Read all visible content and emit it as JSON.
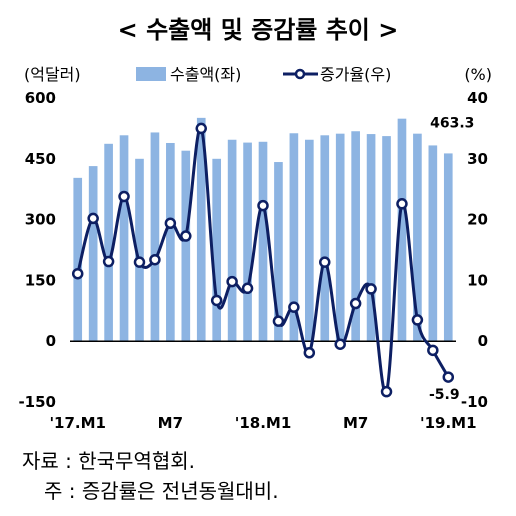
{
  "chart_data": {
    "type": "bar+line",
    "title": "< 수출액 및 증감률 추이 >",
    "left_unit": "(억달러)",
    "right_unit": "(%)",
    "categories": [
      "'17.M1",
      "",
      "",
      "",
      "",
      "",
      "M7",
      "",
      "",
      "",
      "",
      "",
      "'18.M1",
      "",
      "",
      "",
      "",
      "",
      "M7",
      "",
      "",
      "",
      "",
      "",
      "'19.M1"
    ],
    "x_tick_labels": [
      "'17.M1",
      "M7",
      "'18.M1",
      "M7",
      "'19.M1"
    ],
    "bar_series": {
      "name": "수출액(좌)",
      "color": "#8db4e2",
      "values": [
        403,
        432,
        487,
        508,
        450,
        515,
        489,
        470,
        551,
        450,
        497,
        490,
        492,
        442,
        513,
        497,
        508,
        512,
        518,
        511,
        506,
        549,
        512,
        483,
        463.3
      ]
    },
    "line_series": {
      "name": "증가율(우)",
      "color": "#0d1f63",
      "values": [
        11.1,
        20.2,
        13.1,
        23.8,
        13.0,
        13.4,
        19.4,
        17.3,
        35.0,
        6.7,
        9.8,
        8.7,
        22.3,
        3.3,
        5.6,
        -1.9,
        13.0,
        -0.5,
        6.2,
        8.6,
        -8.3,
        22.6,
        3.5,
        -1.5,
        -5.9
      ]
    },
    "ylim_left": [
      -150,
      600
    ],
    "yticks_left": [
      "600",
      "450",
      "300",
      "150",
      "0",
      "-150"
    ],
    "ylim_right": [
      -10,
      40
    ],
    "yticks_right": [
      "40",
      "30",
      "20",
      "10",
      "0",
      "-10"
    ],
    "data_labels": {
      "last_bar": "463.3",
      "last_line": "-5.9"
    },
    "grid": false,
    "legend": "top"
  },
  "notes": {
    "source": "자료 :  한국무역협회.",
    "note": "주 :  증감률은 전년동월대비."
  }
}
